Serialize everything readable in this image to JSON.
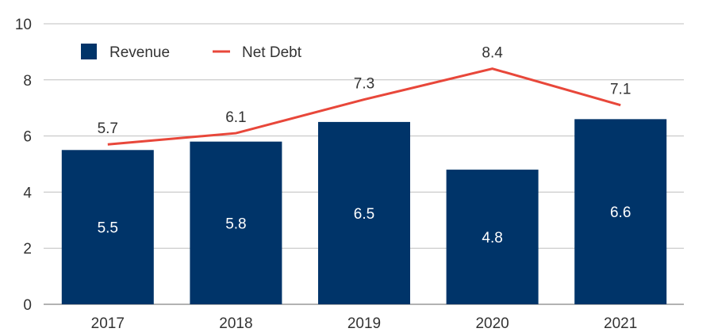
{
  "chart_data": {
    "type": "bar",
    "categories": [
      "2017",
      "2018",
      "2019",
      "2020",
      "2021"
    ],
    "series": [
      {
        "name": "Revenue",
        "type": "bar",
        "values": [
          5.5,
          5.8,
          6.5,
          4.8,
          6.6
        ],
        "labels": [
          "5.5",
          "5.8",
          "6.5",
          "4.8",
          "6.6"
        ],
        "color": "#003469"
      },
      {
        "name": "Net Debt",
        "type": "line",
        "values": [
          5.7,
          6.1,
          7.3,
          8.4,
          7.1
        ],
        "labels": [
          "5.7",
          "6.1",
          "7.3",
          "8.4",
          "7.1"
        ],
        "color": "#e8473a"
      }
    ],
    "ylim": [
      0,
      10
    ],
    "yticks": [
      "0",
      "2",
      "4",
      "6",
      "8",
      "10"
    ],
    "ytick_values": [
      0,
      2,
      4,
      6,
      8,
      10
    ],
    "grid": true,
    "legend_position": "top-left",
    "title": "",
    "xlabel": "",
    "ylabel": ""
  },
  "colors": {
    "grid": "#bfbfbf",
    "axis": "#666666"
  }
}
